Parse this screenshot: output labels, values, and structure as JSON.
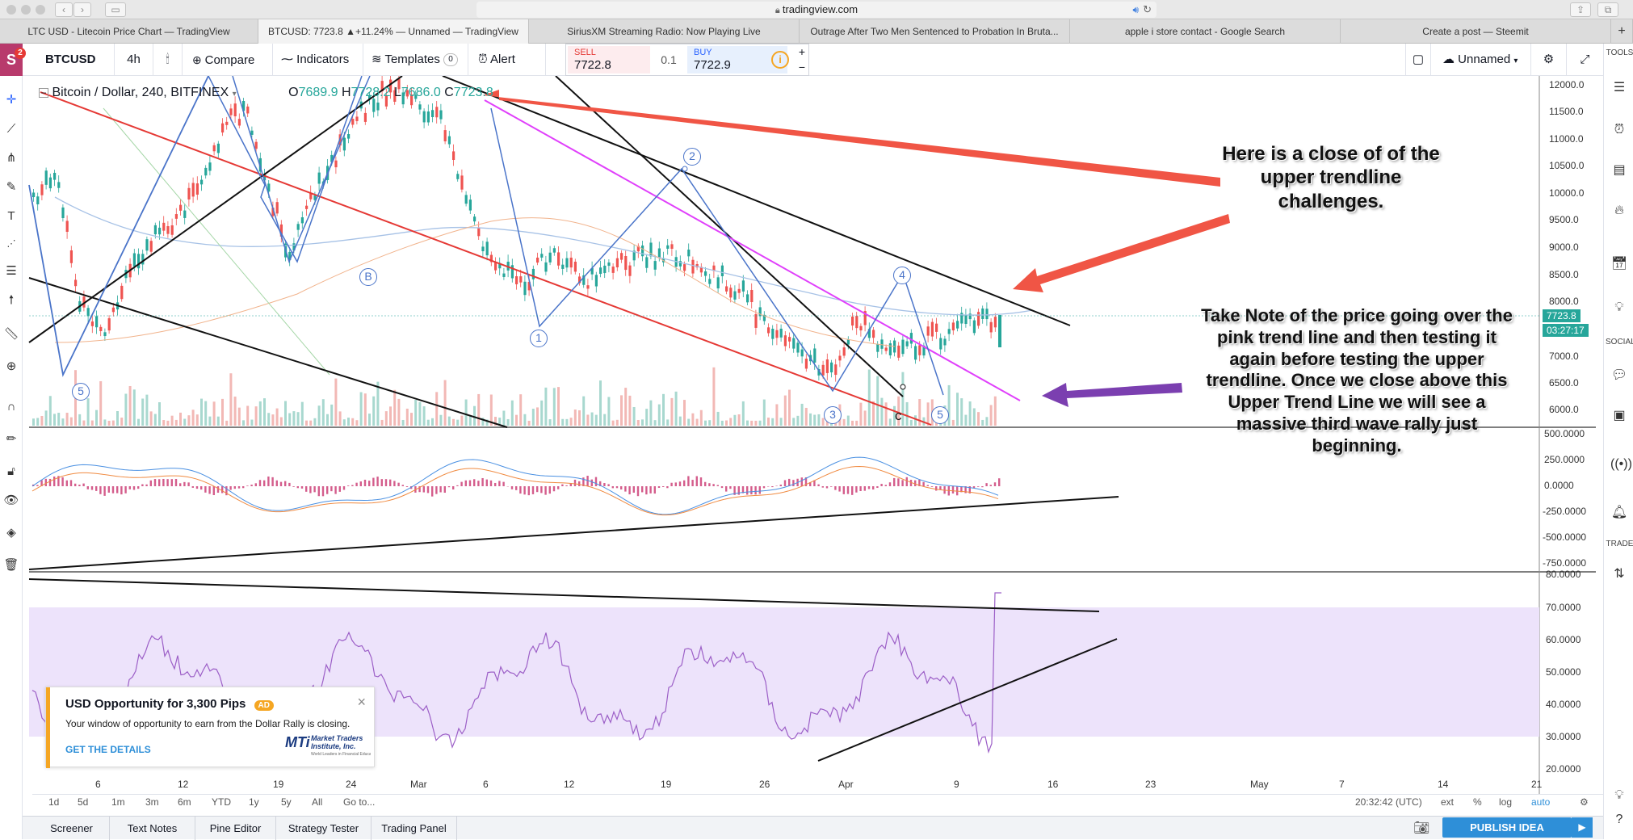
{
  "browser": {
    "url": "tradingview.com",
    "tabs": [
      "LTC USD - Litecoin Price Chart — TradingView",
      "BTCUSD: 7723.8 ▲+11.24% — Unnamed — TradingView",
      "SiriusXM Streaming Radio: Now Playing Live",
      "Outrage After Two Men Sentenced to Probation In Bruta...",
      "apple i store contact - Google Search",
      "Create a post — Steemit"
    ],
    "new_tab": "+"
  },
  "header": {
    "logo": "S",
    "badge": "2",
    "symbol": "BTCUSD",
    "interval": "4h",
    "compare": "Compare",
    "indicators": "Indicators",
    "templates": "Templates",
    "templates_count": "0",
    "alert": "Alert",
    "layout_name": "Unnamed"
  },
  "trade": {
    "sell_label": "SELL",
    "sell_price": "7722.8",
    "qty": "0.1",
    "buy_label": "BUY",
    "buy_price": "7722.9",
    "plus": "+",
    "minus": "−"
  },
  "legend": {
    "title": "Bitcoin / Dollar, 240, BITFINEX",
    "o_label": "O",
    "o": "7689.9",
    "h_label": "H",
    "h": "7728.2",
    "l_label": "L",
    "l": "7686.0",
    "c_label": "C",
    "c": "7723.8"
  },
  "price_scale": [
    "12000.0",
    "11500.0",
    "11000.0",
    "10500.0",
    "10000.0",
    "9500.0",
    "9000.0",
    "8500.0",
    "8000.0",
    "7000.0",
    "6500.0",
    "6000.0"
  ],
  "price_tag": "7723.8",
  "countdown": "03:27:17",
  "macd_scale": [
    "500.0000",
    "250.0000",
    "0.0000",
    "-250.0000",
    "-500.0000",
    "-750.0000"
  ],
  "rsi_scale": [
    "80.0000",
    "70.0000",
    "60.0000",
    "50.0000",
    "40.0000",
    "30.0000",
    "20.0000"
  ],
  "time_labels": [
    "6",
    "12",
    "19",
    "24",
    "Mar",
    "6",
    "12",
    "19",
    "26",
    "Apr",
    "9",
    "16",
    "23",
    "May",
    "7",
    "14",
    "21"
  ],
  "wave_labels": [
    "B",
    "2",
    "4",
    "1",
    "5",
    "3",
    "5",
    "c"
  ],
  "annotations": {
    "top": "Here is a close of of the upper trendline challenges.",
    "bottom": "Take Note of the price going over the pink trend line and then testing it again before testing the upper trendline.  Once we close above this Upper Trend Line we will see a massive third wave rally just beginning."
  },
  "range_buttons": [
    "1d",
    "5d",
    "1m",
    "3m",
    "6m",
    "YTD",
    "1y",
    "5y",
    "All",
    "Go to..."
  ],
  "clock": "20:32:42 (UTC)",
  "scale_buttons": [
    "ext",
    "%",
    "log",
    "auto"
  ],
  "bottom_tabs": [
    "Screener",
    "Text Notes",
    "Pine Editor",
    "Strategy Tester",
    "Trading Panel"
  ],
  "publish": "PUBLISH IDEA",
  "right_labels": [
    "TOOLS",
    "SOCIAL",
    "TRADE"
  ],
  "ad": {
    "title": "USD Opportunity for 3,300 Pips",
    "tag": "AD",
    "body": "Your window of opportunity to earn from the Dollar Rally is closing.",
    "cta": "GET THE DETAILS",
    "brand": "Market Traders Institute, Inc.",
    "brand_sub": "World Leaders in Financial Education",
    "brand_mark": "MTi",
    "close": "×"
  },
  "colors": {
    "up": "#26a69a",
    "down": "#ef5350",
    "pink_trend": "#e040fb",
    "red_channel": "#e53935",
    "wave": "#4a74c9",
    "rsi_fill": "#ede3fb",
    "arrow_red": "#f05545",
    "arrow_purple": "#7b3fb0"
  }
}
